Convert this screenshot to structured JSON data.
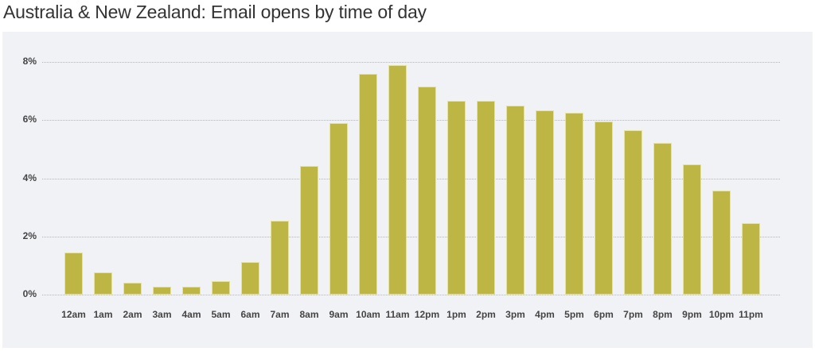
{
  "title": "Australia & New Zealand: Email opens by time of day",
  "colors": {
    "bar": "#bdb645",
    "panel_bg": "#f1f2f6",
    "grid": "#b5b5b8",
    "text": "#333333"
  },
  "chart_data": {
    "type": "bar",
    "title": "Australia & New Zealand: Email opens by time of day",
    "xlabel": "",
    "ylabel": "",
    "ylim": [
      0,
      8
    ],
    "yticks": [
      "0%",
      "2%",
      "4%",
      "6%",
      "8%"
    ],
    "grid": true,
    "legend": null,
    "categories": [
      "12am",
      "1am",
      "2am",
      "3am",
      "4am",
      "5am",
      "6am",
      "7am",
      "8am",
      "9am",
      "10am",
      "11am",
      "12pm",
      "1pm",
      "2pm",
      "3pm",
      "4pm",
      "5pm",
      "6pm",
      "7pm",
      "8pm",
      "9pm",
      "10pm",
      "11pm"
    ],
    "values": [
      1.45,
      0.77,
      0.41,
      0.27,
      0.27,
      0.46,
      1.12,
      2.54,
      4.43,
      5.9,
      7.6,
      7.9,
      7.16,
      6.67,
      6.67,
      6.5,
      6.34,
      6.26,
      5.95,
      5.66,
      5.22,
      4.48,
      3.58,
      2.46
    ],
    "unit": "%"
  }
}
